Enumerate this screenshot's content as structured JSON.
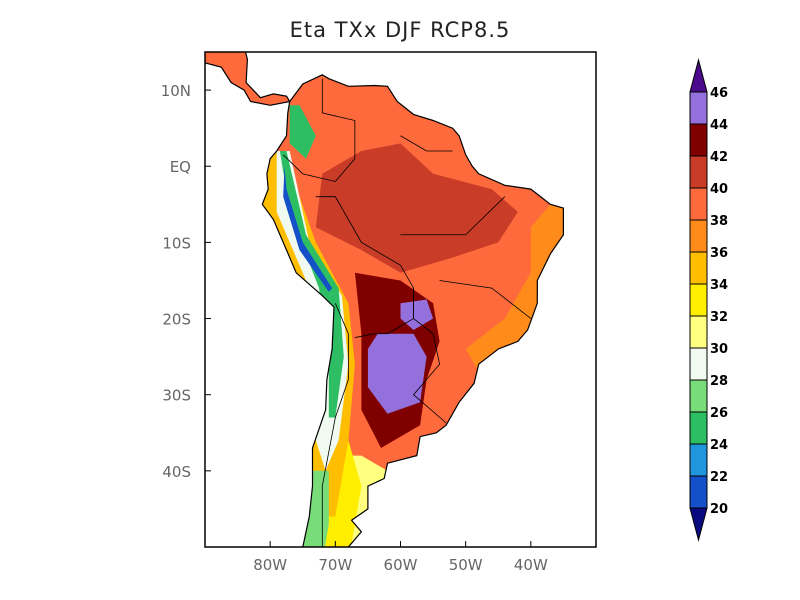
{
  "title": "Eta TXx DJF RCP8.5",
  "map": {
    "lon_range": [
      -90,
      -30
    ],
    "lat_range": [
      -50,
      15
    ],
    "lon_ticks": [
      {
        "value": -80,
        "label": "80W"
      },
      {
        "value": -70,
        "label": "70W"
      },
      {
        "value": -60,
        "label": "60W"
      },
      {
        "value": -50,
        "label": "50W"
      },
      {
        "value": -40,
        "label": "40W"
      }
    ],
    "lat_ticks": [
      {
        "value": 10,
        "label": "10N"
      },
      {
        "value": 0,
        "label": "EQ"
      },
      {
        "value": -10,
        "label": "10S"
      },
      {
        "value": -20,
        "label": "20S"
      },
      {
        "value": -30,
        "label": "30S"
      },
      {
        "value": -40,
        "label": "40S"
      }
    ]
  },
  "colorbar": {
    "levels": [
      "20",
      "22",
      "24",
      "26",
      "28",
      "30",
      "32",
      "34",
      "36",
      "38",
      "40",
      "42",
      "44",
      "46"
    ],
    "below_color": "#0a0a80",
    "above_color": "#4b0a8c",
    "colors": [
      "#1450c8",
      "#2096dc",
      "#2dbe64",
      "#78dc78",
      "#f0faf0",
      "#ffff80",
      "#ffee00",
      "#ffbe00",
      "#ff8c1a",
      "#ff6a3d",
      "#c83c28",
      "#800000",
      "#9370db"
    ]
  }
}
